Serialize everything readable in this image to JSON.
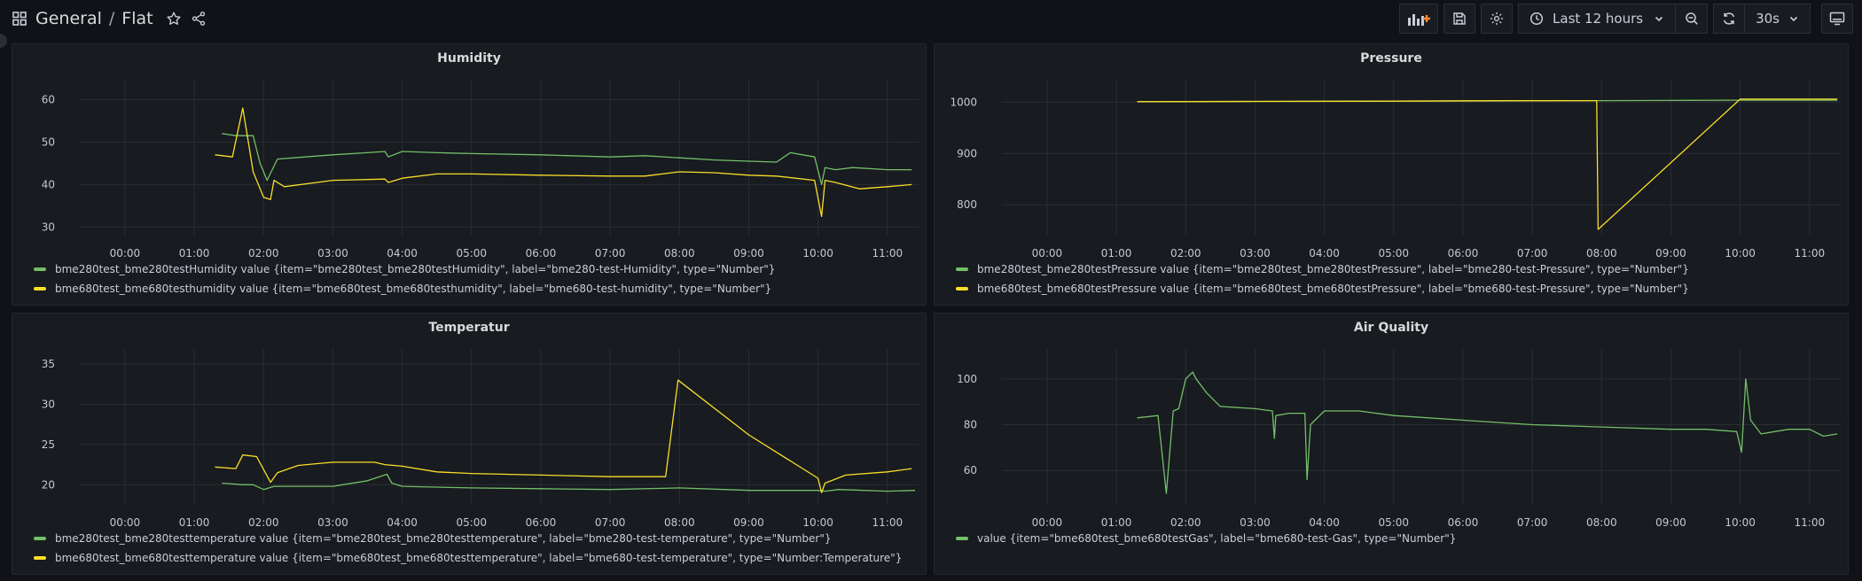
{
  "header": {
    "folder": "General",
    "separator": "/",
    "dashboard": "Flat",
    "time_range": "Last 12 hours",
    "refresh": "30s"
  },
  "colors": {
    "green": "#73bf69",
    "yellow": "#fade2a",
    "grid": "#2a2d33",
    "axis_text": "#c7c7d1"
  },
  "panels": [
    {
      "id": "humidity",
      "title": "Humidity",
      "chart_data": {
        "type": "line",
        "y_ticks": [
          30,
          40,
          50,
          60
        ],
        "ylim": [
          28,
          63
        ],
        "x_ticks": [
          "00:00",
          "01:00",
          "02:00",
          "03:00",
          "04:00",
          "05:00",
          "06:00",
          "07:00",
          "08:00",
          "09:00",
          "10:00",
          "11:00"
        ],
        "xlim": [
          -0.6,
          11.45
        ],
        "series": [
          {
            "name": "bme280test_bme280testHumidity value {item=\"bme280test_bme280testHumidity\", label=\"bme280-test-Humidity\", type=\"Number\"}",
            "color": "green",
            "x": [
              1.4,
              1.6,
              1.85,
              1.95,
              2.05,
              2.2,
              2.6,
              3.0,
              3.5,
              3.75,
              3.8,
              4.0,
              4.5,
              5.0,
              6.0,
              7.0,
              7.5,
              8.0,
              8.5,
              9.0,
              9.4,
              9.6,
              9.95,
              10.05,
              10.1,
              10.25,
              10.5,
              11.0,
              11.35
            ],
            "y": [
              52,
              51.5,
              51.5,
              45,
              41,
              46,
              46.5,
              47,
              47.5,
              47.8,
              46.5,
              47.8,
              47.5,
              47.3,
              47.0,
              46.5,
              46.8,
              46.3,
              45.8,
              45.5,
              45.3,
              47.5,
              46.5,
              40,
              44,
              43.5,
              44,
              43.5,
              43.5
            ]
          },
          {
            "name": "bme680test_bme680testhumidity value {item=\"bme680test_bme680testhumidity\", label=\"bme680-test-humidity\", type=\"Number\"}",
            "color": "yellow",
            "x": [
              1.3,
              1.55,
              1.7,
              1.78,
              1.85,
              2.0,
              2.1,
              2.15,
              2.3,
              3.0,
              3.75,
              3.8,
              4.0,
              4.5,
              5.0,
              6.0,
              7.0,
              7.5,
              8.0,
              8.5,
              9.0,
              9.4,
              9.95,
              10.05,
              10.1,
              10.25,
              10.6,
              11.0,
              11.35
            ],
            "y": [
              47,
              46.5,
              58,
              50,
              43,
              37,
              36.5,
              41,
              39.5,
              41,
              41.3,
              40.5,
              41.5,
              42.5,
              42.5,
              42.2,
              42.0,
              42.0,
              43.0,
              42.8,
              42.2,
              42.0,
              41,
              32.5,
              41,
              40.5,
              39,
              39.5,
              40
            ]
          }
        ]
      }
    },
    {
      "id": "pressure",
      "title": "Pressure",
      "chart_data": {
        "type": "line",
        "y_ticks": [
          800,
          900,
          1000
        ],
        "ylim": [
          740,
          1030
        ],
        "x_ticks": [
          "00:00",
          "01:00",
          "02:00",
          "03:00",
          "04:00",
          "05:00",
          "06:00",
          "07:00",
          "08:00",
          "09:00",
          "10:00",
          "11:00"
        ],
        "xlim": [
          -0.6,
          11.45
        ],
        "series": [
          {
            "name": "bme280test_bme280testPressure value {item=\"bme280test_bme280testPressure\", label=\"bme280-test-Pressure\", type=\"Number\"}",
            "color": "green",
            "x": [
              1.3,
              3.0,
              5.0,
              7.0,
              7.95,
              8.0,
              9.0,
              10.0,
              11.4
            ],
            "y": [
              1001,
              1001.5,
              1002,
              1002.5,
              1003,
              1003,
              1003.5,
              1004,
              1004
            ]
          },
          {
            "name": "bme680test_bme680testPressure value {item=\"bme680test_bme680testPressure\", label=\"bme680-test-Pressure\", type=\"Number\"}",
            "color": "yellow",
            "x": [
              1.3,
              3.0,
              5.0,
              6.5,
              7.93,
              7.95,
              10.0,
              11.4
            ],
            "y": [
              1001,
              1001.5,
              1002,
              1003,
              1003,
              752,
              1006,
              1006
            ]
          }
        ]
      }
    },
    {
      "id": "temperatur",
      "title": "Temperatur",
      "chart_data": {
        "type": "line",
        "y_ticks": [
          20,
          25,
          30,
          35
        ],
        "ylim": [
          17.5,
          36
        ],
        "x_ticks": [
          "00:00",
          "01:00",
          "02:00",
          "03:00",
          "04:00",
          "05:00",
          "06:00",
          "07:00",
          "08:00",
          "09:00",
          "10:00",
          "11:00"
        ],
        "xlim": [
          -0.6,
          11.45
        ],
        "series": [
          {
            "name": "bme280test_bme280testtemperature value {item=\"bme280test_bme280testtemperature\", label=\"bme280-test-temperature\", type=\"Number\"}",
            "color": "green",
            "x": [
              1.4,
              1.7,
              1.85,
              2.0,
              2.15,
              2.5,
              3.0,
              3.5,
              3.78,
              3.85,
              4.0,
              5.0,
              6.0,
              7.0,
              8.0,
              9.0,
              10.0,
              10.1,
              10.3,
              11.0,
              11.4
            ],
            "y": [
              20.2,
              20.0,
              20.0,
              19.4,
              19.8,
              19.8,
              19.8,
              20.5,
              21.3,
              20.2,
              19.8,
              19.6,
              19.5,
              19.4,
              19.6,
              19.3,
              19.3,
              19.2,
              19.4,
              19.2,
              19.3
            ]
          },
          {
            "name": "bme680test_bme680testtemperature value {item=\"bme680test_bme680testtemperature\", label=\"bme680-test-temperature\", type=\"Number:Temperature\"}",
            "color": "yellow",
            "x": [
              1.3,
              1.6,
              1.7,
              1.9,
              2.1,
              2.2,
              2.5,
              3.0,
              3.6,
              3.75,
              4.0,
              4.5,
              5.0,
              6.0,
              7.0,
              7.8,
              7.98,
              9.0,
              10.0,
              10.05,
              10.1,
              10.4,
              11.0,
              11.35
            ],
            "y": [
              22.2,
              22.0,
              23.7,
              23.5,
              20.3,
              21.5,
              22.4,
              22.8,
              22.8,
              22.5,
              22.3,
              21.6,
              21.4,
              21.2,
              21.0,
              21.0,
              33.0,
              26.2,
              20.8,
              19.0,
              20.2,
              21.2,
              21.6,
              22.0
            ]
          }
        ]
      }
    },
    {
      "id": "airquality",
      "title": "Air Quality",
      "chart_data": {
        "type": "line",
        "y_ticks": [
          60,
          80,
          100
        ],
        "ylim": [
          45,
          110
        ],
        "x_ticks": [
          "00:00",
          "01:00",
          "02:00",
          "03:00",
          "04:00",
          "05:00",
          "06:00",
          "07:00",
          "08:00",
          "09:00",
          "10:00",
          "11:00"
        ],
        "xlim": [
          -0.6,
          11.45
        ],
        "series": [
          {
            "name": "value {item=\"bme680test_bme680testGas\", label=\"bme680-test-Gas\", type=\"Number\"}",
            "color": "green",
            "x": [
              1.3,
              1.6,
              1.72,
              1.82,
              1.9,
              2.0,
              2.1,
              2.15,
              2.3,
              2.5,
              3.0,
              3.25,
              3.28,
              3.3,
              3.5,
              3.72,
              3.75,
              3.8,
              4.0,
              4.5,
              5.0,
              6.0,
              7.0,
              8.0,
              9.0,
              9.5,
              9.95,
              10.02,
              10.08,
              10.15,
              10.3,
              10.7,
              11.0,
              11.2,
              11.4
            ],
            "y": [
              83,
              84,
              50,
              86,
              87,
              100,
              103,
              100,
              94,
              88,
              87,
              86,
              74,
              84,
              85,
              85,
              56,
              80,
              86,
              86,
              84,
              82,
              80,
              79,
              78,
              78,
              77,
              68,
              100,
              82,
              76,
              78,
              78,
              75,
              76
            ]
          }
        ]
      }
    }
  ]
}
